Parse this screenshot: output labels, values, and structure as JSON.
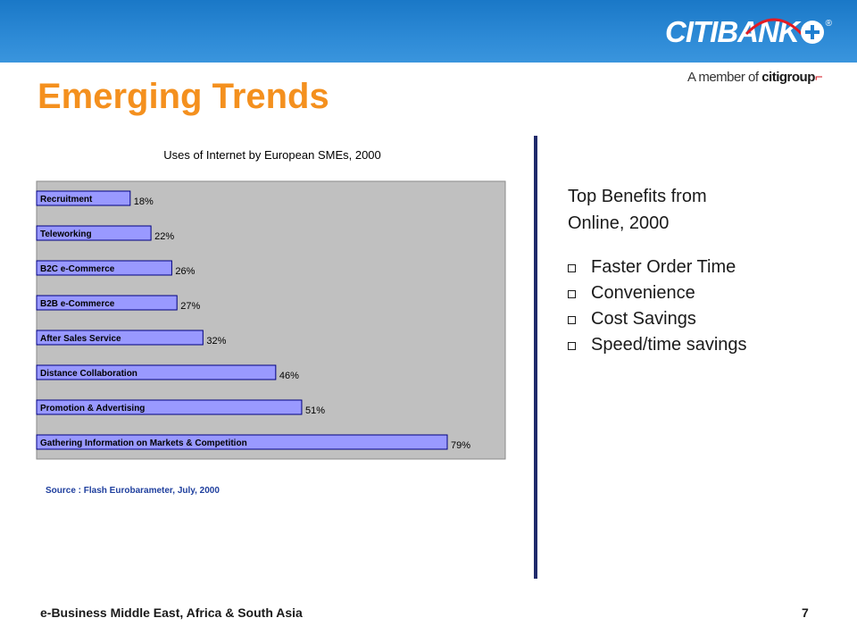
{
  "header": {
    "logo_text": "CITIBANK",
    "logo_registered": "®",
    "member_prefix": "A member of",
    "member_brand": "citigroup"
  },
  "page": {
    "title": "Emerging Trends"
  },
  "benefits": {
    "heading_line1": "Top Benefits from",
    "heading_line2": "Online, 2000",
    "items": [
      "Faster Order Time",
      "Convenience",
      "Cost Savings",
      "Speed/time savings"
    ]
  },
  "footer": {
    "left": "e-Business Middle East, Africa & South Asia",
    "page_number": "7"
  },
  "colors": {
    "header_blue": "#2d8ad6",
    "title_orange": "#f4901e",
    "divider_navy": "#1f2a6b",
    "bar_fill": "#9999ff",
    "plot_bg": "#c0c0c0",
    "source_blue": "#1f3f9e"
  },
  "chart_data": {
    "type": "bar",
    "orientation": "horizontal",
    "title": "Uses of Internet by European SMEs, 2000",
    "source": "Source :  Flash Eurobarameter, July,  2000",
    "categories": [
      "Recruitment",
      "Teleworking",
      "B2C e-Commerce",
      "B2B e-Commerce",
      "After Sales Service",
      "Distance Collaboration",
      "Promotion & Advertising",
      "Gathering Information on Markets & Competition"
    ],
    "values": [
      18,
      22,
      26,
      27,
      32,
      46,
      51,
      79
    ],
    "value_labels": [
      "18%",
      "22%",
      "26%",
      "27%",
      "32%",
      "46%",
      "51%",
      "79%"
    ],
    "xlim": [
      0,
      90
    ],
    "grid": false,
    "legend": "none"
  }
}
